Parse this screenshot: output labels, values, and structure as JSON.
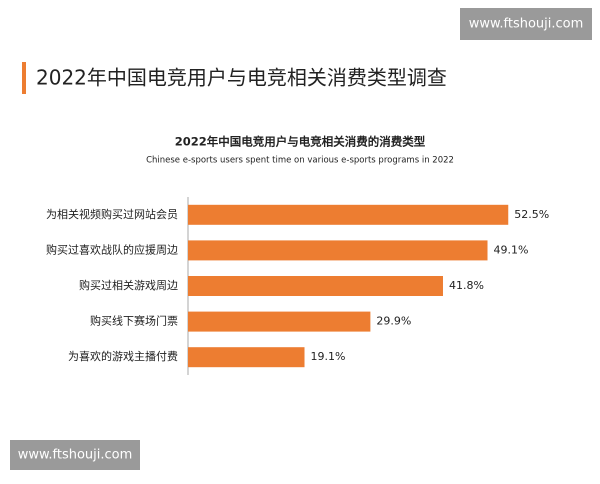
{
  "header": {
    "title": "2022年中国电竞用户与电竞相关消费类型调查"
  },
  "watermarks": [
    "www.ftshouji.com",
    "www.ftshouji.com"
  ],
  "chart_data": {
    "type": "bar",
    "orientation": "horizontal",
    "title": "2022年中国电竞用户与电竞相关消费的消费类型",
    "subtitle": "Chinese e-sports users spent time on various e-sports programs in 2022",
    "categories": [
      "为相关视频购买过网站会员",
      "购买过喜欢战队的应援周边",
      "购买过相关游戏周边",
      "购买线下赛场门票",
      "为喜欢的游戏主播付费"
    ],
    "values": [
      52.5,
      49.1,
      41.8,
      29.9,
      19.1
    ],
    "value_labels": [
      "52.5%",
      "49.1%",
      "41.8%",
      "29.9%",
      "19.1%"
    ],
    "color": "#ed7d31"
  }
}
